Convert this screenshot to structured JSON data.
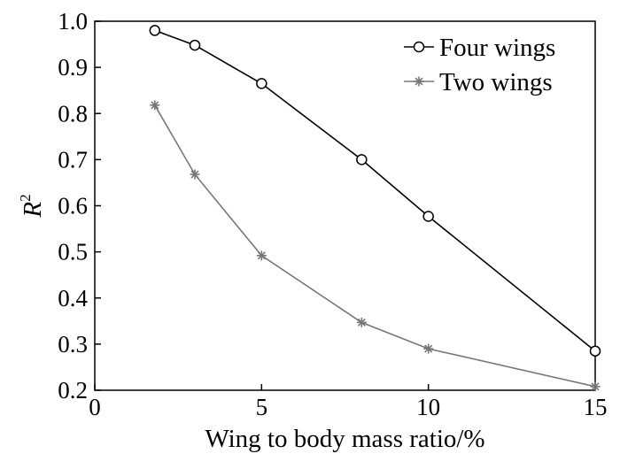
{
  "chart_data": {
    "type": "line",
    "title": "",
    "xlabel": "Wing to body mass ratio/%",
    "ylabel": "R",
    "ylabel_superscript": "2",
    "xlim": [
      0,
      15
    ],
    "ylim": [
      0.2,
      1.0
    ],
    "xticks": [
      0,
      5,
      10,
      15
    ],
    "yticks": [
      0.2,
      0.3,
      0.4,
      0.5,
      0.6,
      0.7,
      0.8,
      0.9,
      1.0
    ],
    "yticks_labels": [
      "0.2",
      "0.3",
      "0.4",
      "0.5",
      "0.6",
      "0.7",
      "0.8",
      "0.9",
      "1.0"
    ],
    "grid": false,
    "legend_position": "top-right",
    "series": [
      {
        "name": "Four wings",
        "marker": "circle",
        "color": "#000000",
        "x": [
          1.8,
          3.0,
          5.0,
          8.0,
          10.0,
          15.0
        ],
        "y": [
          0.98,
          0.948,
          0.865,
          0.7,
          0.577,
          0.285
        ]
      },
      {
        "name": "Two wings",
        "marker": "asterisk",
        "color": "#777777",
        "x": [
          1.8,
          3.0,
          5.0,
          8.0,
          10.0,
          15.0
        ],
        "y": [
          0.818,
          0.668,
          0.492,
          0.347,
          0.29,
          0.208
        ]
      }
    ]
  }
}
